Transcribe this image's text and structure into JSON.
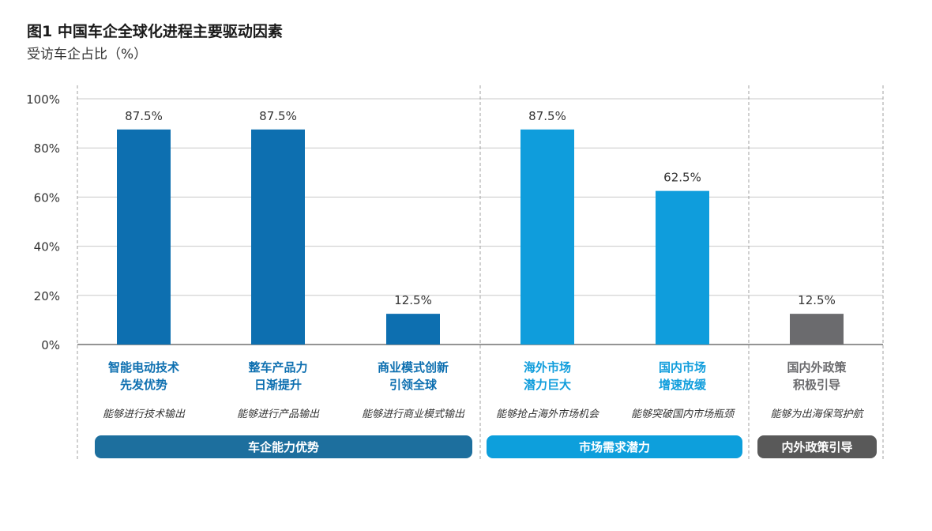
{
  "colors": {
    "dark_blue": "#0d6fb0",
    "light_blue": "#0f9ddc",
    "gray": "#6b6b6e",
    "pill_dark_blue": "#1d6f9e",
    "pill_light_blue": "#0d9fdc",
    "pill_gray": "#595959",
    "grid": "#c8c8c8",
    "divider": "#a0a0a0"
  },
  "chart_data": {
    "type": "bar",
    "title": "图1 中国车企全球化进程主要驱动因素",
    "subtitle": "受访车企占比（%）",
    "ylim": [
      0,
      100
    ],
    "y_ticks": [
      0,
      20,
      40,
      60,
      80,
      100
    ],
    "y_tick_labels": [
      "0%",
      "20%",
      "40%",
      "60%",
      "80%",
      "100%"
    ],
    "grid": true,
    "bars": [
      {
        "label_line1": "智能电动技术",
        "label_line2": "先发优势",
        "description": "能够进行技术输出",
        "value": 87.5,
        "value_label": "87.5%",
        "color": "#0d6fb0",
        "group": 0
      },
      {
        "label_line1": "整车产品力",
        "label_line2": "日渐提升",
        "description": "能够进行产品输出",
        "value": 87.5,
        "value_label": "87.5%",
        "color": "#0d6fb0",
        "group": 0
      },
      {
        "label_line1": "商业模式创新",
        "label_line2": "引领全球",
        "description": "能够进行商业模式输出",
        "value": 12.5,
        "value_label": "12.5%",
        "color": "#0d6fb0",
        "group": 0
      },
      {
        "label_line1": "海外市场",
        "label_line2": "潜力巨大",
        "description": "能够抢占海外市场机会",
        "value": 87.5,
        "value_label": "87.5%",
        "color": "#0f9ddc",
        "group": 1
      },
      {
        "label_line1": "国内市场",
        "label_line2": "增速放缓",
        "description": "能够突破国内市场瓶颈",
        "value": 62.5,
        "value_label": "62.5%",
        "color": "#0f9ddc",
        "group": 1
      },
      {
        "label_line1": "国内外政策",
        "label_line2": "积极引导",
        "description": "能够为出海保驾护航",
        "value": 12.5,
        "value_label": "12.5%",
        "color": "#6b6b6e",
        "group": 2
      }
    ],
    "groups": [
      {
        "name": "车企能力优势",
        "color": "#1d6f9e"
      },
      {
        "name": "市场需求潜力",
        "color": "#0d9fdc"
      },
      {
        "name": "内外政策引导",
        "color": "#595959"
      }
    ]
  }
}
